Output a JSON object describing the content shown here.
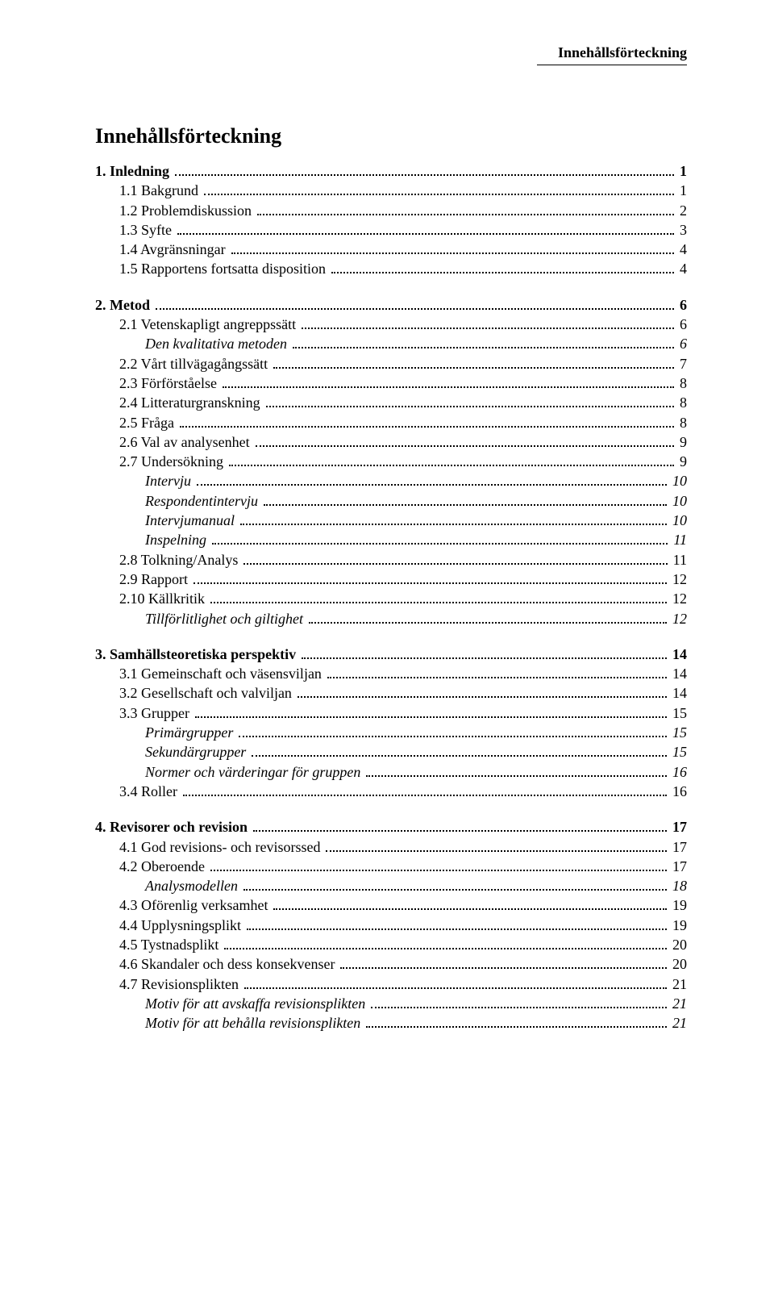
{
  "running_header": "Innehållsförteckning",
  "toc_title": "Innehållsförteckning",
  "sections": [
    {
      "heading": {
        "label": "1. Inledning",
        "page": "1"
      },
      "items": [
        {
          "level": 1,
          "label": "1.1 Bakgrund",
          "page": "1"
        },
        {
          "level": 1,
          "label": "1.2 Problemdiskussion",
          "page": "2"
        },
        {
          "level": 1,
          "label": "1.3 Syfte",
          "page": "3"
        },
        {
          "level": 1,
          "label": "1.4 Avgränsningar",
          "page": "4"
        },
        {
          "level": 1,
          "label": "1.5 Rapportens fortsatta disposition",
          "page": "4"
        }
      ]
    },
    {
      "heading": {
        "label": "2. Metod",
        "page": "6"
      },
      "items": [
        {
          "level": 1,
          "label": "2.1 Vetenskapligt angreppssätt",
          "page": "6"
        },
        {
          "level": 2,
          "label": "Den kvalitativa metoden",
          "page": "6"
        },
        {
          "level": 1,
          "label": "2.2 Vårt tillvägagångssätt",
          "page": "7"
        },
        {
          "level": 1,
          "label": "2.3 Förförståelse",
          "page": "8"
        },
        {
          "level": 1,
          "label": "2.4 Litteraturgranskning",
          "page": "8"
        },
        {
          "level": 1,
          "label": "2.5 Fråga",
          "page": "8"
        },
        {
          "level": 1,
          "label": "2.6 Val av analysenhet",
          "page": "9"
        },
        {
          "level": 1,
          "label": "2.7 Undersökning",
          "page": "9"
        },
        {
          "level": 2,
          "label": "Intervju",
          "page": "10"
        },
        {
          "level": 2,
          "label": "Respondentintervju",
          "page": "10"
        },
        {
          "level": 2,
          "label": "Intervjumanual",
          "page": "10"
        },
        {
          "level": 2,
          "label": "Inspelning",
          "page": "11"
        },
        {
          "level": 1,
          "label": "2.8 Tolkning/Analys",
          "page": "11"
        },
        {
          "level": 1,
          "label": "2.9 Rapport",
          "page": "12"
        },
        {
          "level": 1,
          "label": "2.10 Källkritik",
          "page": "12"
        },
        {
          "level": 2,
          "label": "Tillförlitlighet och giltighet",
          "page": "12"
        }
      ]
    },
    {
      "heading": {
        "label": "3. Samhällsteoretiska perspektiv",
        "page": "14"
      },
      "items": [
        {
          "level": 1,
          "label": "3.1 Gemeinschaft och väsensviljan",
          "page": "14"
        },
        {
          "level": 1,
          "label": "3.2 Gesellschaft och valviljan",
          "page": "14"
        },
        {
          "level": 1,
          "label": "3.3 Grupper",
          "page": "15"
        },
        {
          "level": 2,
          "label": "Primärgrupper",
          "page": "15"
        },
        {
          "level": 2,
          "label": "Sekundärgrupper",
          "page": "15"
        },
        {
          "level": 2,
          "label": "Normer och värderingar för gruppen",
          "page": "16"
        },
        {
          "level": 1,
          "label": "3.4 Roller",
          "page": "16"
        }
      ]
    },
    {
      "heading": {
        "label": "4. Revisorer och revision",
        "page": "17"
      },
      "items": [
        {
          "level": 1,
          "label": "4.1 God revisions- och revisorssed",
          "page": "17"
        },
        {
          "level": 1,
          "label": "4.2 Oberoende",
          "page": "17"
        },
        {
          "level": 2,
          "label": "Analysmodellen",
          "page": "18"
        },
        {
          "level": 1,
          "label": "4.3 Oförenlig verksamhet",
          "page": "19"
        },
        {
          "level": 1,
          "label": "4.4 Upplysningsplikt",
          "page": "19"
        },
        {
          "level": 1,
          "label": "4.5 Tystnadsplikt",
          "page": "20"
        },
        {
          "level": 1,
          "label": "4.6 Skandaler och dess konsekvenser",
          "page": "20"
        },
        {
          "level": 1,
          "label": "4.7 Revisionsplikten",
          "page": "21"
        },
        {
          "level": 2,
          "label": "Motiv för att avskaffa revisionsplikten",
          "page": "21"
        },
        {
          "level": 2,
          "label": "Motiv för att behålla revisionsplikten",
          "page": "21"
        }
      ]
    }
  ]
}
